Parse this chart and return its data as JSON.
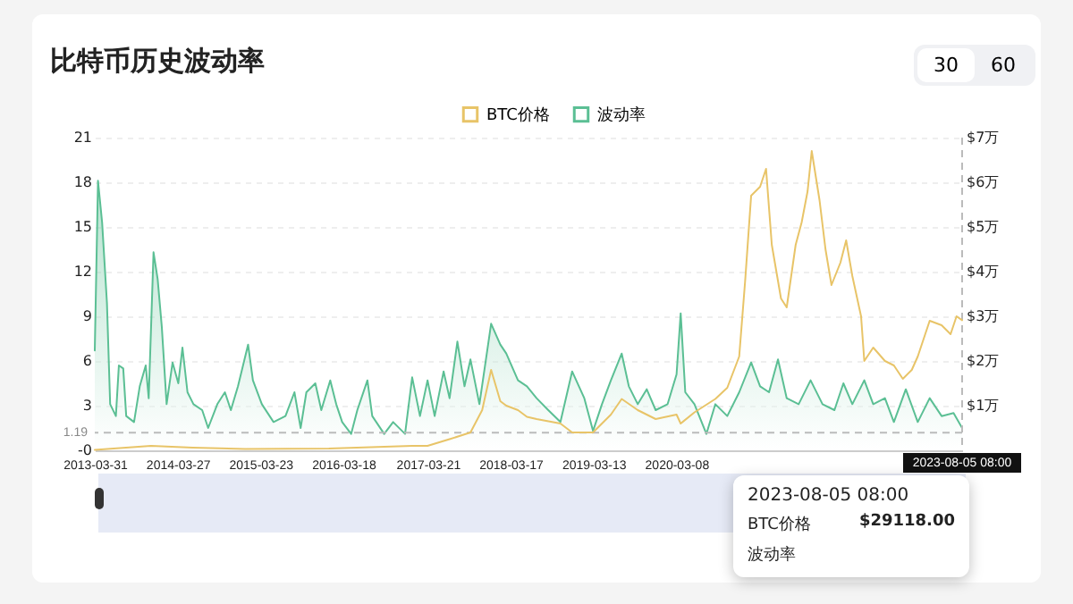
{
  "chart_data": {
    "type": "line",
    "title": "比特币历史波动率",
    "xlim": [
      "2013-03-31",
      "2023-08-05T08:00"
    ],
    "xticks": [
      "2013-03-31",
      "2014-03-27",
      "2015-03-23",
      "2016-03-18",
      "2017-03-21",
      "2018-03-17",
      "2019-03-13",
      "2020-03-08"
    ],
    "ylim": [
      0,
      21
    ],
    "yticks": [
      {
        "value": 0,
        "label": "-0"
      },
      3,
      6,
      9,
      12,
      15,
      18,
      21
    ],
    "y2lim": [
      0,
      7
    ],
    "y2ticks": [
      {
        "value": 0,
        "label": null
      },
      {
        "value": 1,
        "label": "$1万"
      },
      {
        "value": 2,
        "label": "$2万"
      },
      {
        "value": 3,
        "label": "$3万"
      },
      {
        "value": 4,
        "label": "$4万"
      },
      {
        "value": 5,
        "label": "$5万"
      },
      {
        "value": 6,
        "label": "$6万"
      },
      {
        "value": 7,
        "label": "$7万"
      }
    ],
    "grid": "y",
    "legend": "top",
    "marker": "none",
    "line_style": "solid",
    "series": [
      {
        "name": "BTC价格",
        "color": "#e8c468",
        "axis": "y2",
        "x": [
          "2013-03-31",
          "2013-12-01",
          "2014-06-01",
          "2015-01-15",
          "2016-01-15",
          "2017-01-12",
          "2017-03-20",
          "2017-06-24",
          "2017-09-23",
          "2017-11-13",
          "2017-12-22",
          "2018-01-31",
          "2018-02-26",
          "2018-04-18",
          "2018-05-27",
          "2018-07-08",
          "2018-10-20",
          "2018-12-10",
          "2019-03-11",
          "2019-05-28",
          "2019-07-14",
          "2019-09-22",
          "2019-12-09",
          "2020-03-09",
          "2020-03-27",
          "2020-05-26",
          "2020-08-25",
          "2020-10-16",
          "2020-12-07",
          "2021-01-02",
          "2021-01-28",
          "2021-03-08",
          "2021-04-03",
          "2021-04-28",
          "2021-06-07",
          "2021-07-02",
          "2021-08-10",
          "2021-09-05",
          "2021-10-01",
          "2021-10-19",
          "2021-11-22",
          "2021-12-18",
          "2022-01-13",
          "2022-02-21",
          "2022-03-18",
          "2022-04-14",
          "2022-05-22",
          "2022-06-05",
          "2022-07-14",
          "2022-09-03",
          "2022-10-12",
          "2022-11-20",
          "2022-12-29",
          "2023-01-24",
          "2023-03-17",
          "2023-05-08",
          "2023-06-16",
          "2023-07-12",
          "2023-08-05T08:00"
        ],
        "values": [
          0.01,
          0.1,
          0.06,
          0.03,
          0.04,
          0.1,
          0.1,
          0.25,
          0.4,
          0.9,
          1.8,
          1.1,
          1.0,
          0.9,
          0.75,
          0.7,
          0.6,
          0.4,
          0.4,
          0.8,
          1.15,
          0.9,
          0.7,
          0.8,
          0.6,
          0.85,
          1.15,
          1.4,
          2.1,
          3.8,
          5.7,
          5.9,
          6.3,
          4.6,
          3.4,
          3.2,
          4.6,
          5.1,
          5.8,
          6.7,
          5.6,
          4.5,
          3.7,
          4.2,
          4.7,
          3.9,
          3.0,
          2.0,
          2.3,
          2.0,
          1.9,
          1.6,
          1.8,
          2.1,
          2.9,
          2.8,
          2.6,
          3.0,
          2.9118
        ]
      },
      {
        "name": "波动率",
        "color": "#5bbf94",
        "type": "area",
        "x": [
          "2013-03-31",
          "2013-04-14",
          "2013-05-02",
          "2013-05-23",
          "2013-06-06",
          "2013-07-01",
          "2013-07-14",
          "2013-08-02",
          "2013-08-15",
          "2013-09-18",
          "2013-10-13",
          "2013-11-08",
          "2013-11-21",
          "2013-12-12",
          "2013-12-30",
          "2014-01-17",
          "2014-02-07",
          "2014-03-05",
          "2014-03-30",
          "2014-04-17",
          "2014-05-09",
          "2014-06-04",
          "2014-07-12",
          "2014-08-07",
          "2014-09-16",
          "2014-10-19",
          "2014-11-14",
          "2014-12-15",
          "2015-01-28",
          "2015-02-18",
          "2015-03-29",
          "2015-05-19",
          "2015-07-10",
          "2015-08-18",
          "2015-09-14",
          "2015-10-09",
          "2015-11-17",
          "2015-12-13",
          "2016-01-21",
          "2016-02-16",
          "2016-03-13",
          "2016-04-21",
          "2016-05-18",
          "2016-07-01",
          "2016-07-22",
          "2016-09-12",
          "2016-10-21",
          "2016-12-12",
          "2017-01-12",
          "2017-02-15",
          "2017-03-20",
          "2017-04-20",
          "2017-05-29",
          "2017-06-24",
          "2017-07-28",
          "2017-08-28",
          "2017-09-23",
          "2017-11-01",
          "2017-12-22",
          "2018-01-31",
          "2018-02-26",
          "2018-04-18",
          "2018-05-27",
          "2018-07-08",
          "2018-08-28",
          "2018-10-20",
          "2018-12-10",
          "2019-02-01",
          "2019-03-11",
          "2019-04-19",
          "2019-05-28",
          "2019-07-14",
          "2019-08-14",
          "2019-09-22",
          "2019-10-31",
          "2019-12-09",
          "2020-01-30",
          "2020-03-09",
          "2020-03-27",
          "2020-04-16",
          "2020-05-26",
          "2020-07-17",
          "2020-08-25",
          "2020-10-16",
          "2020-12-07",
          "2021-01-28",
          "2021-03-08",
          "2021-04-16",
          "2021-05-25",
          "2021-07-02",
          "2021-08-23",
          "2021-10-14",
          "2021-12-05",
          "2022-01-26",
          "2022-03-06",
          "2022-04-14",
          "2022-06-05",
          "2022-07-14",
          "2022-09-03",
          "2022-10-12",
          "2022-12-03",
          "2023-01-24",
          "2023-03-17",
          "2023-05-08",
          "2023-06-29",
          "2023-08-05T08:00"
        ],
        "values": [
          6.7,
          18.1,
          15.3,
          9.9,
          3.1,
          2.3,
          5.7,
          5.5,
          2.3,
          1.9,
          4.3,
          5.7,
          3.5,
          13.3,
          11.5,
          8.3,
          3.1,
          5.9,
          4.5,
          6.9,
          3.9,
          3.1,
          2.7,
          1.5,
          3.1,
          3.9,
          2.7,
          4.3,
          7.1,
          4.7,
          3.1,
          1.9,
          2.3,
          3.9,
          1.5,
          3.9,
          4.5,
          2.7,
          4.7,
          3.1,
          1.9,
          1.1,
          2.7,
          4.7,
          2.3,
          1.1,
          1.9,
          1.1,
          4.9,
          2.3,
          4.7,
          2.3,
          5.3,
          3.5,
          7.3,
          4.3,
          6.1,
          3.1,
          8.5,
          7.1,
          6.5,
          4.7,
          4.3,
          3.5,
          2.7,
          1.9,
          5.3,
          3.5,
          1.3,
          3.1,
          4.7,
          6.5,
          4.3,
          3.1,
          4.1,
          2.7,
          3.1,
          5.1,
          9.2,
          3.9,
          3.1,
          1.1,
          3.1,
          2.3,
          3.9,
          5.9,
          4.3,
          3.9,
          6.1,
          3.5,
          3.1,
          4.7,
          3.1,
          2.7,
          4.5,
          3.1,
          4.7,
          3.1,
          3.5,
          1.9,
          4.1,
          1.9,
          3.5,
          2.3,
          2.5,
          1.5
        ]
      }
    ],
    "ref_lines": [
      {
        "axis": "y",
        "value": 1.19,
        "label": "1.19",
        "color": "#bbbbbb",
        "line_style": "dashed"
      },
      {
        "axis": "x",
        "value": "2023-08-05T08:00",
        "label": "2023-08-05 08:00",
        "color": "#bbbbbb",
        "line_style": "dashed"
      }
    ],
    "annotations": [
      "30",
      "60",
      "2023-08-05 08:00",
      "BTC价格",
      "$29118.00",
      "波动率"
    ]
  }
}
